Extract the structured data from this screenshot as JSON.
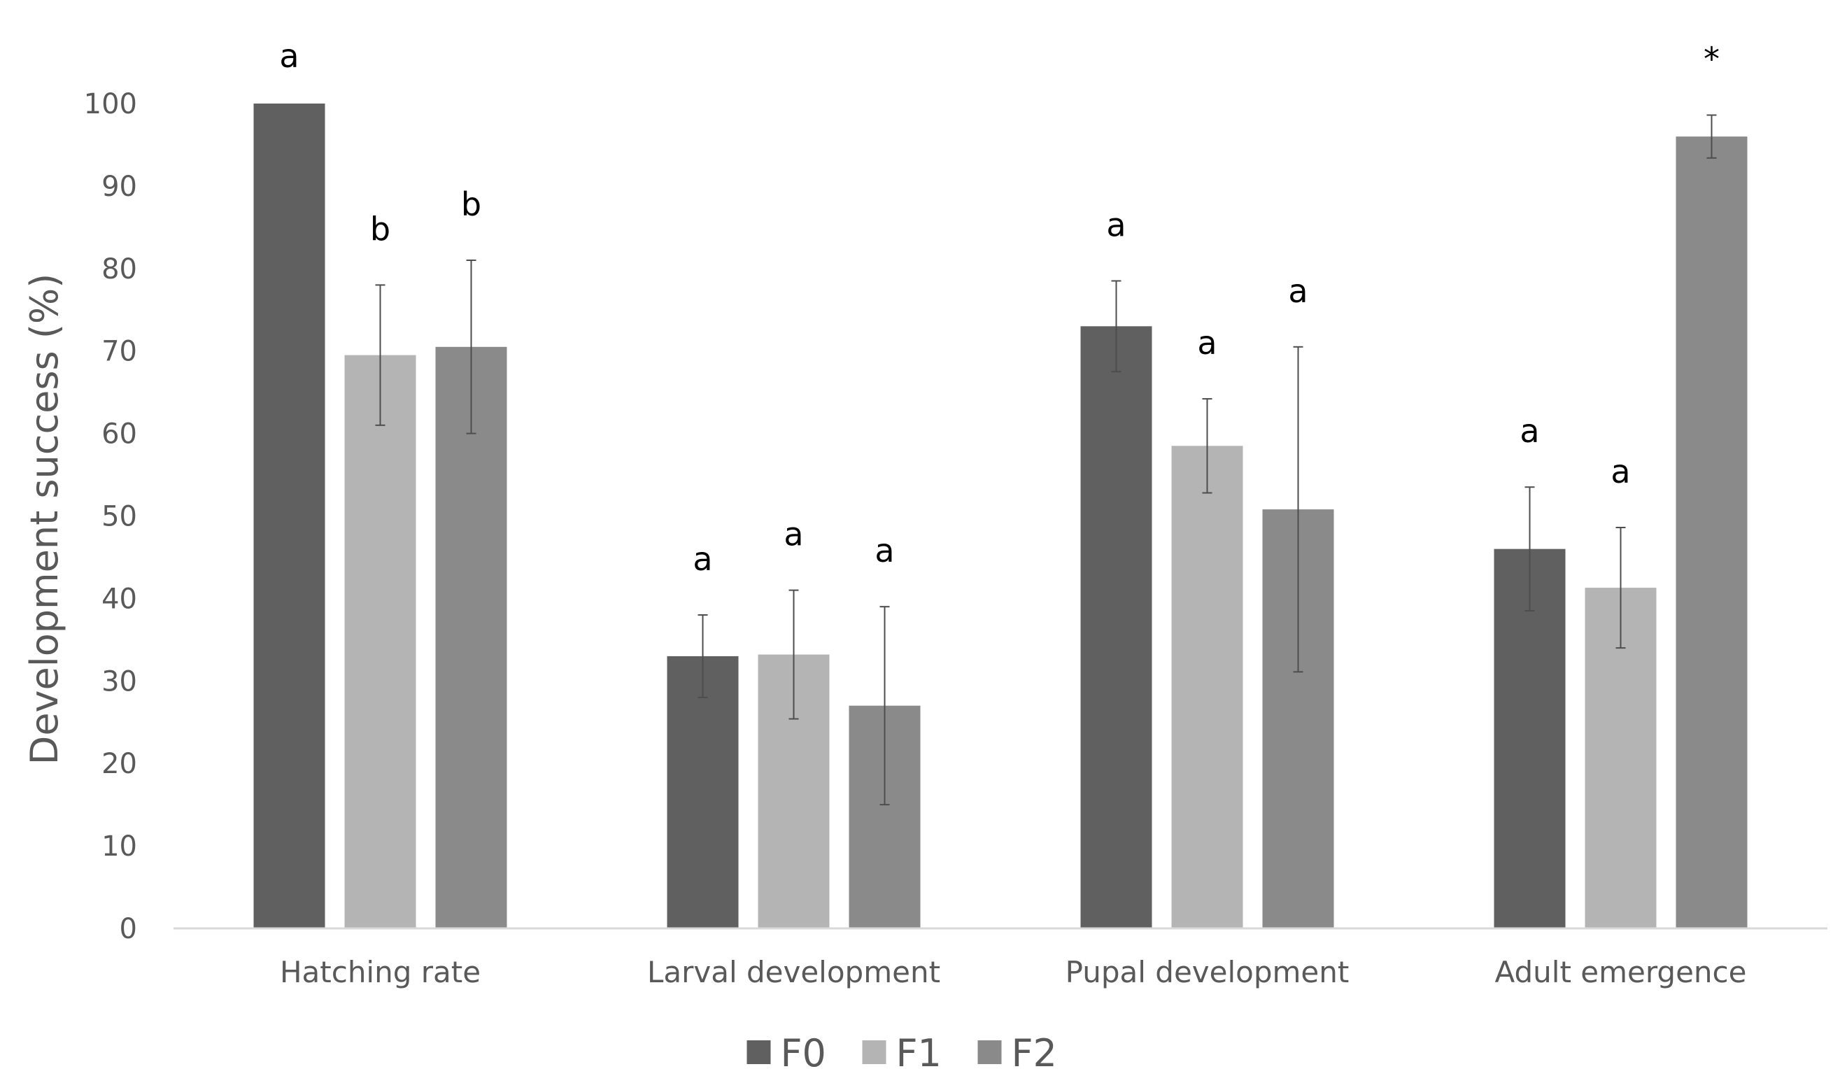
{
  "chart_data": {
    "type": "bar",
    "title": "",
    "xlabel": "",
    "ylabel": "Development success (%)",
    "ylim": [
      0,
      100
    ],
    "yticks": [
      0,
      10,
      20,
      30,
      40,
      50,
      60,
      70,
      80,
      90,
      100
    ],
    "grid": false,
    "legend_position": "bottom-center",
    "categories": [
      "Hatching rate",
      "Larval development",
      "Pupal development",
      "Adult emergence"
    ],
    "series": [
      {
        "name": "F0",
        "color": "#606060",
        "values": [
          100,
          33,
          73,
          46
        ],
        "errors": [
          0,
          5,
          5.5,
          7.5
        ],
        "letters": [
          "a",
          "a",
          "a",
          "a"
        ]
      },
      {
        "name": "F1",
        "color": "#b4b4b4",
        "values": [
          69.5,
          33.2,
          58.5,
          41.3
        ],
        "errors": [
          8.5,
          7.8,
          5.7,
          7.3
        ],
        "letters": [
          "b",
          "a",
          "a",
          "a"
        ]
      },
      {
        "name": "F2",
        "color": "#8a8a8a",
        "values": [
          70.5,
          27,
          50.8,
          96
        ],
        "errors": [
          10.5,
          12,
          19.7,
          2.6
        ],
        "letters": [
          "b",
          "a",
          "a",
          "*"
        ]
      }
    ]
  }
}
